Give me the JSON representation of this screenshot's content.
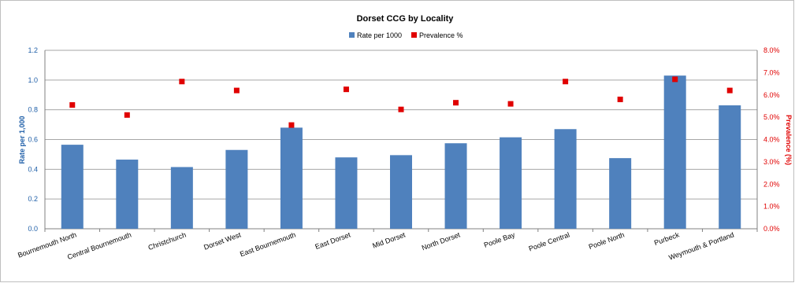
{
  "chart_data": {
    "type": "bar",
    "title": "Dorset CCG by Locality",
    "categories": [
      "Bournemouth North",
      "Central Bournemouth",
      "Christchurch",
      "Dorset West",
      "East Bournemouth",
      "East Dorset",
      "Mid Dorset",
      "North Dorset",
      "Poole Bay",
      "Poole Central",
      "Poole North",
      "Purbeck",
      "Weymouth & Portland"
    ],
    "series": [
      {
        "name": "Rate per 1000",
        "kind": "bar",
        "axis": "left",
        "color": "#4f81bd",
        "values": [
          0.565,
          0.465,
          0.415,
          0.53,
          0.68,
          0.48,
          0.495,
          0.575,
          0.615,
          0.67,
          0.475,
          1.03,
          0.83
        ]
      },
      {
        "name": "Prevalence %",
        "kind": "marker",
        "axis": "right",
        "color": "#e00000",
        "values": [
          5.55,
          5.1,
          6.6,
          6.2,
          4.65,
          6.25,
          5.35,
          5.65,
          5.6,
          6.6,
          5.8,
          6.7,
          6.2
        ]
      }
    ],
    "y_left": {
      "label": "Rate per 1,000",
      "range": [
        0,
        1.2
      ],
      "ticks": [
        "0.0",
        "0.2",
        "0.4",
        "0.6",
        "0.8",
        "1.0",
        "1.2"
      ]
    },
    "y_right": {
      "label": "Prevalence (%)",
      "range": [
        0,
        8
      ],
      "ticks": [
        "0.0%",
        "1.0%",
        "2.0%",
        "3.0%",
        "4.0%",
        "5.0%",
        "6.0%",
        "7.0%",
        "8.0%"
      ]
    },
    "grid": true,
    "legend": "top-center"
  }
}
